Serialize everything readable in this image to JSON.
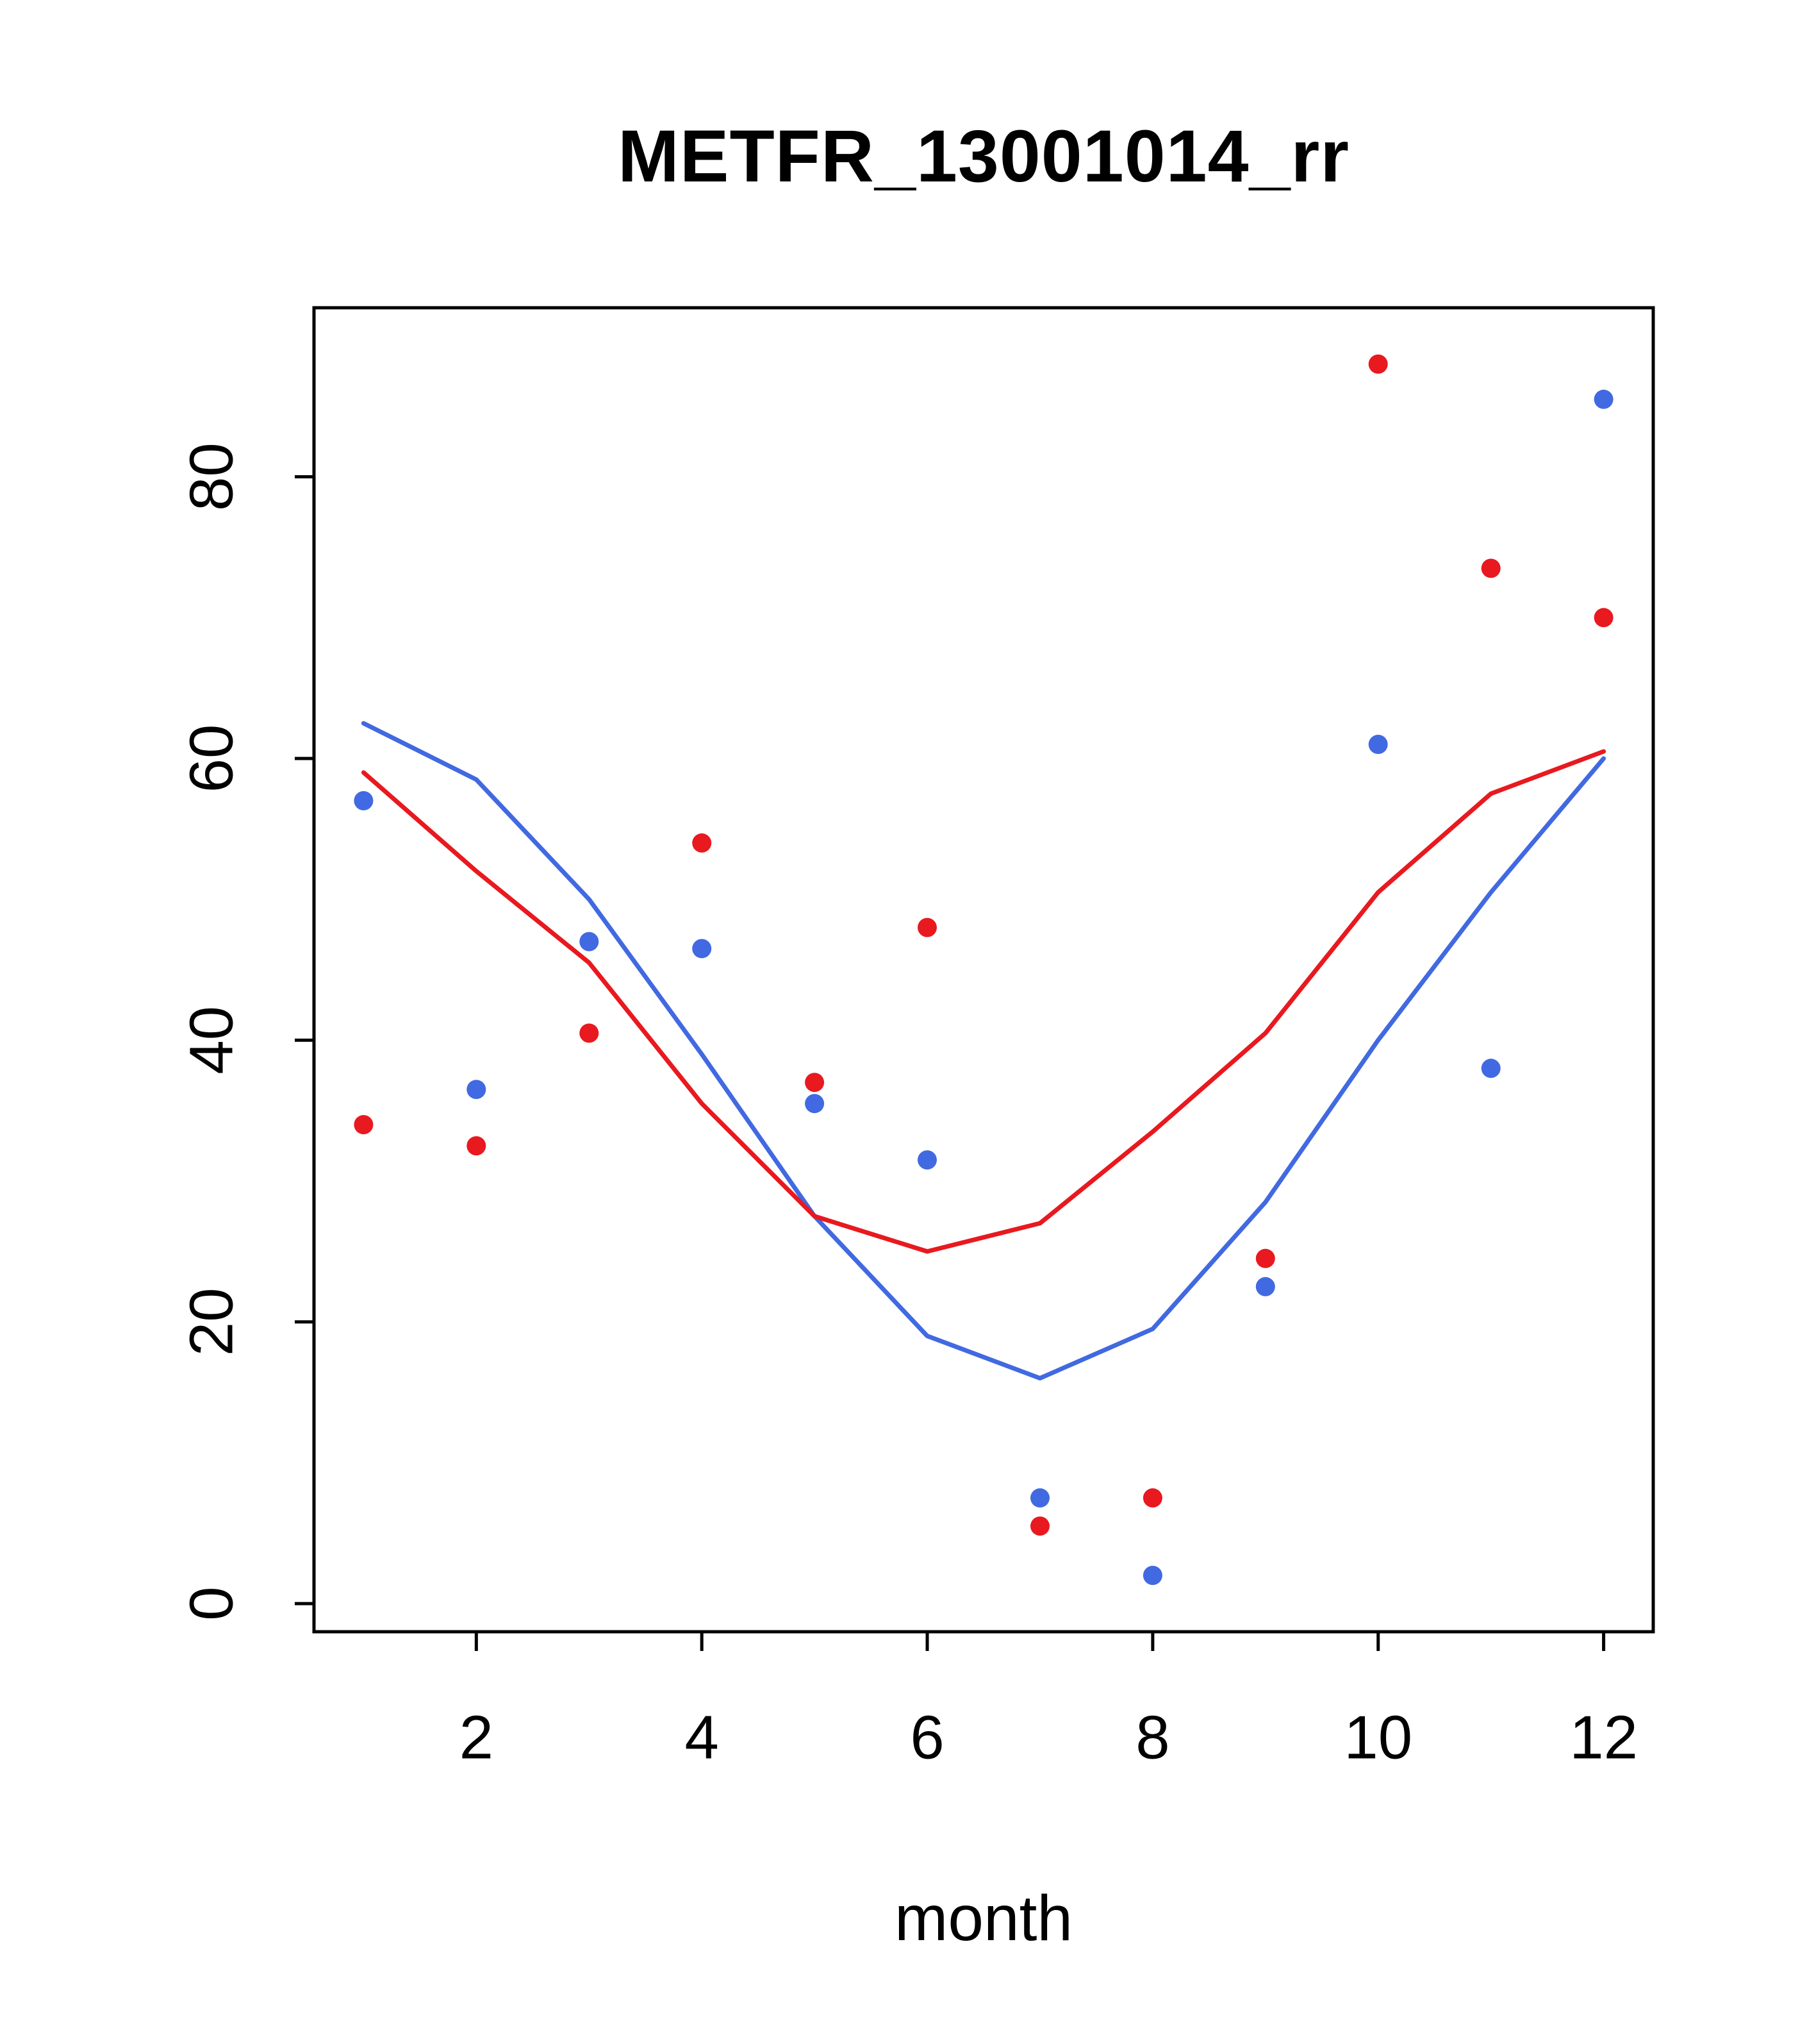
{
  "chart_data": {
    "type": "line",
    "title": "METFR_13001014_rr",
    "xlabel": "month",
    "ylabel": "",
    "x": [
      1,
      2,
      3,
      4,
      5,
      6,
      7,
      8,
      9,
      10,
      11,
      12
    ],
    "xlim": [
      0.56,
      12.44
    ],
    "ylim": [
      -2,
      92
    ],
    "xticks": [
      2,
      4,
      6,
      8,
      10,
      12
    ],
    "yticks": [
      0,
      20,
      40,
      60,
      80
    ],
    "grid": false,
    "legend": "none",
    "colors": {
      "blue": "#4169E1",
      "red": "#E8191F",
      "axis": "#000000",
      "background": "#FFFFFF"
    },
    "series": [
      {
        "name": "blue-line",
        "type": "line",
        "color": "#4169E1",
        "values": [
          62.5,
          58.5,
          50,
          39,
          27.5,
          19,
          16,
          19.5,
          28.5,
          40,
          50.5,
          60
        ]
      },
      {
        "name": "red-line",
        "type": "line",
        "color": "#E8191F",
        "values": [
          59,
          52,
          45.5,
          35.5,
          27.5,
          25,
          27,
          33.5,
          40.5,
          50.5,
          57.5,
          60.5
        ]
      },
      {
        "name": "blue-points",
        "type": "scatter",
        "color": "#4169E1",
        "values": [
          57,
          36.5,
          47,
          46.5,
          35.5,
          31.5,
          7.5,
          2,
          22.5,
          61,
          38,
          85.5
        ]
      },
      {
        "name": "red-points",
        "type": "scatter",
        "color": "#E8191F",
        "values": [
          34,
          32.5,
          40.5,
          54,
          37,
          48,
          5.5,
          7.5,
          24.5,
          88,
          73.5,
          70
        ]
      }
    ]
  }
}
